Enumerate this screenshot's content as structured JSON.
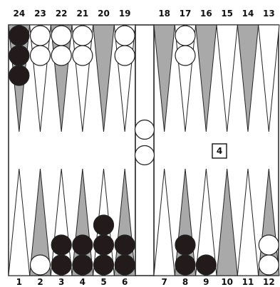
{
  "board": {
    "top_numbers": [
      "24",
      "23",
      "22",
      "21",
      "20",
      "19",
      "18",
      "17",
      "16",
      "15",
      "14",
      "13"
    ],
    "bottom_numbers": [
      "1",
      "2",
      "3",
      "4",
      "5",
      "6",
      "7",
      "8",
      "9",
      "10",
      "11",
      "12"
    ],
    "cube_value": "4",
    "points": {
      "24": {
        "color": "black",
        "count": 3
      },
      "23": {
        "color": "white",
        "count": 2
      },
      "22": {
        "color": "white",
        "count": 2
      },
      "21": {
        "color": "white",
        "count": 2
      },
      "19": {
        "color": "white",
        "count": 2
      },
      "17": {
        "color": "white",
        "count": 2
      },
      "2": {
        "color": "white",
        "count": 1
      },
      "3": {
        "color": "black",
        "count": 2
      },
      "4": {
        "color": "black",
        "count": 2
      },
      "5": {
        "color": "black",
        "count": 3
      },
      "6": {
        "color": "black",
        "count": 2
      },
      "8": {
        "color": "black",
        "count": 2
      },
      "9": {
        "color": "black",
        "count": 1
      },
      "12": {
        "color": "white",
        "count": 2
      }
    },
    "bar": {
      "white": 2,
      "black": 0
    },
    "colors": {
      "dark_point": "#a9a9a9",
      "light_point": "#ffffff",
      "black_checker": "#231a1c",
      "white_checker": "#ffffff",
      "line": "#222222"
    }
  }
}
